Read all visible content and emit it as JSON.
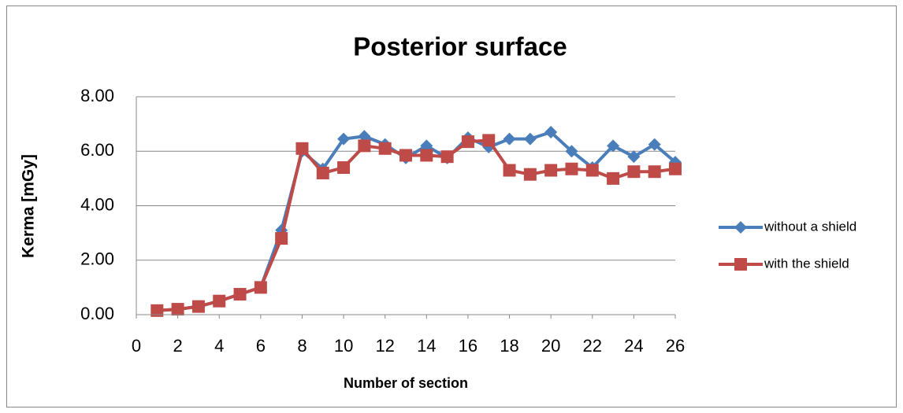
{
  "chart_data": {
    "type": "line",
    "title": "Posterior surface",
    "x_label": "Number of section",
    "y_label": "Kerma [mGy]",
    "x": [
      1,
      2,
      3,
      4,
      5,
      6,
      7,
      8,
      9,
      10,
      11,
      12,
      13,
      14,
      15,
      16,
      17,
      18,
      19,
      20,
      21,
      22,
      23,
      24,
      25,
      26
    ],
    "series": [
      {
        "name": "without a shield",
        "color": "#4a7ebb",
        "marker": "diamond",
        "values": [
          0.15,
          0.2,
          0.3,
          0.5,
          0.75,
          1.0,
          3.1,
          6.0,
          5.35,
          6.45,
          6.55,
          6.25,
          5.75,
          6.2,
          5.75,
          6.5,
          6.15,
          6.45,
          6.45,
          6.7,
          6.0,
          5.4,
          6.2,
          5.8,
          6.25,
          5.6
        ]
      },
      {
        "name": "with the shield",
        "color": "#be4b48",
        "marker": "square",
        "values": [
          0.15,
          0.2,
          0.3,
          0.5,
          0.75,
          1.0,
          2.8,
          6.1,
          5.2,
          5.4,
          6.2,
          6.1,
          5.85,
          5.85,
          5.8,
          6.35,
          6.4,
          5.3,
          5.15,
          5.3,
          5.35,
          5.3,
          5.0,
          5.25,
          5.25,
          5.35
        ]
      }
    ],
    "xlim": [
      0,
      26
    ],
    "xticks": [
      0,
      2,
      4,
      6,
      8,
      10,
      12,
      14,
      16,
      18,
      20,
      22,
      24,
      26
    ],
    "ylim": [
      0,
      8
    ],
    "yticks": [
      {
        "value": 0,
        "label": "0.00"
      },
      {
        "value": 2,
        "label": "2.00"
      },
      {
        "value": 4,
        "label": "4.00"
      },
      {
        "value": 6,
        "label": "6.00"
      },
      {
        "value": 8,
        "label": "8.00"
      }
    ],
    "grid": true,
    "legend": "right"
  }
}
